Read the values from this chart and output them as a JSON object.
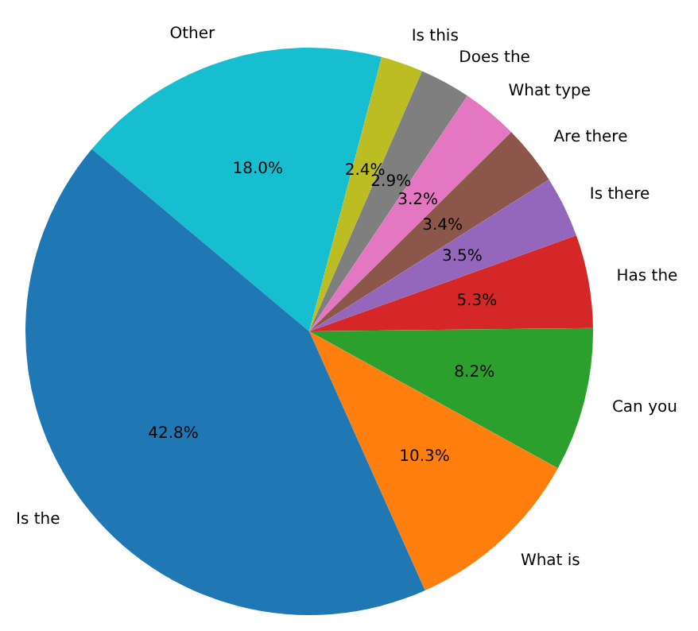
{
  "chart_data": {
    "type": "pie",
    "categories": [
      "Other",
      "Is this",
      "Does the",
      "What type",
      "Are there",
      "Is there",
      "Has the",
      "Can you",
      "What is",
      "Is the"
    ],
    "values": [
      18.0,
      2.4,
      2.9,
      3.2,
      3.4,
      3.5,
      5.3,
      8.2,
      10.3,
      42.8
    ],
    "colors": [
      "#17becf",
      "#bcbd22",
      "#7f7f7f",
      "#e377c2",
      "#8c564b",
      "#9467bd",
      "#d62728",
      "#2ca02c",
      "#ff7f0e",
      "#1f77b4"
    ],
    "value_labels": [
      "18.0%",
      "2.4%",
      "2.9%",
      "3.2%",
      "3.4%",
      "3.5%",
      "5.3%",
      "8.2%",
      "10.3%",
      "42.8%"
    ],
    "legend": false
  }
}
